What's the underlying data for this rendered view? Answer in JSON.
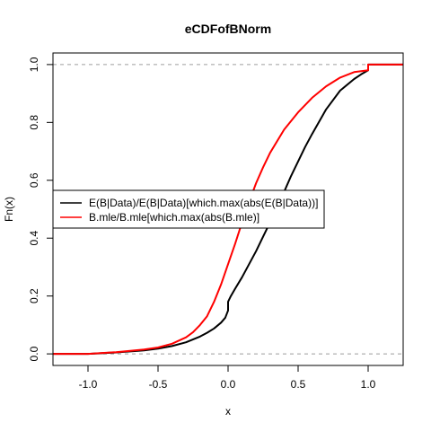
{
  "chart_data": {
    "type": "line",
    "title": "eCDFofBNorm",
    "xlabel": "x",
    "ylabel": "Fn(x)",
    "xlim": [
      -1.25,
      1.25
    ],
    "ylim": [
      -0.04,
      1.04
    ],
    "x_ticks": [
      -1.0,
      -0.5,
      0.0,
      0.5,
      1.0
    ],
    "x_tick_labels": [
      "-1.0",
      "-0.5",
      "0.0",
      "0.5",
      "1.0"
    ],
    "y_ticks": [
      0.0,
      0.2,
      0.4,
      0.6,
      0.8,
      1.0
    ],
    "y_tick_labels": [
      "0.0",
      "0.2",
      "0.4",
      "0.6",
      "0.8",
      "1.0"
    ],
    "grid": false,
    "reference_lines": [
      {
        "y": 0.0,
        "style": "dashed",
        "color": "#9e9e9e"
      },
      {
        "y": 1.0,
        "style": "dashed",
        "color": "#9e9e9e"
      }
    ],
    "legend": {
      "position": "center-left",
      "entries": [
        {
          "label": "E(B|Data)/E(B|Data)[which.max(abs(E(B|Data))]",
          "color": "#000000"
        },
        {
          "label": "B.mle/B.mle[which.max(abs(B.mle)]",
          "color": "#ff0000"
        }
      ]
    },
    "series": [
      {
        "color": "#000000",
        "x": [
          -1.25,
          -1.0,
          -0.8,
          -0.6,
          -0.5,
          -0.4,
          -0.3,
          -0.2,
          -0.15,
          -0.1,
          -0.05,
          -0.02,
          0.0,
          0.0,
          0.02,
          0.05,
          0.1,
          0.15,
          0.2,
          0.25,
          0.3,
          0.35,
          0.4,
          0.45,
          0.5,
          0.55,
          0.6,
          0.7,
          0.8,
          0.9,
          0.95,
          1.0,
          1.0,
          1.25
        ],
        "y": [
          0.0,
          0.0,
          0.005,
          0.012,
          0.018,
          0.027,
          0.04,
          0.06,
          0.073,
          0.088,
          0.108,
          0.125,
          0.15,
          0.18,
          0.2,
          0.225,
          0.265,
          0.31,
          0.355,
          0.405,
          0.455,
          0.51,
          0.56,
          0.615,
          0.665,
          0.715,
          0.76,
          0.845,
          0.91,
          0.95,
          0.966,
          0.98,
          1.0,
          1.0
        ]
      },
      {
        "color": "#ff0000",
        "x": [
          -1.25,
          -1.0,
          -0.8,
          -0.6,
          -0.5,
          -0.4,
          -0.3,
          -0.25,
          -0.2,
          -0.15,
          -0.1,
          -0.05,
          0.0,
          0.05,
          0.1,
          0.15,
          0.2,
          0.25,
          0.3,
          0.4,
          0.5,
          0.6,
          0.7,
          0.8,
          0.9,
          1.0,
          1.0,
          1.25
        ],
        "y": [
          0.0,
          0.0,
          0.006,
          0.015,
          0.022,
          0.035,
          0.057,
          0.075,
          0.1,
          0.13,
          0.18,
          0.24,
          0.31,
          0.38,
          0.455,
          0.525,
          0.59,
          0.645,
          0.695,
          0.775,
          0.835,
          0.885,
          0.925,
          0.955,
          0.974,
          0.98,
          1.0,
          1.0
        ]
      }
    ]
  }
}
